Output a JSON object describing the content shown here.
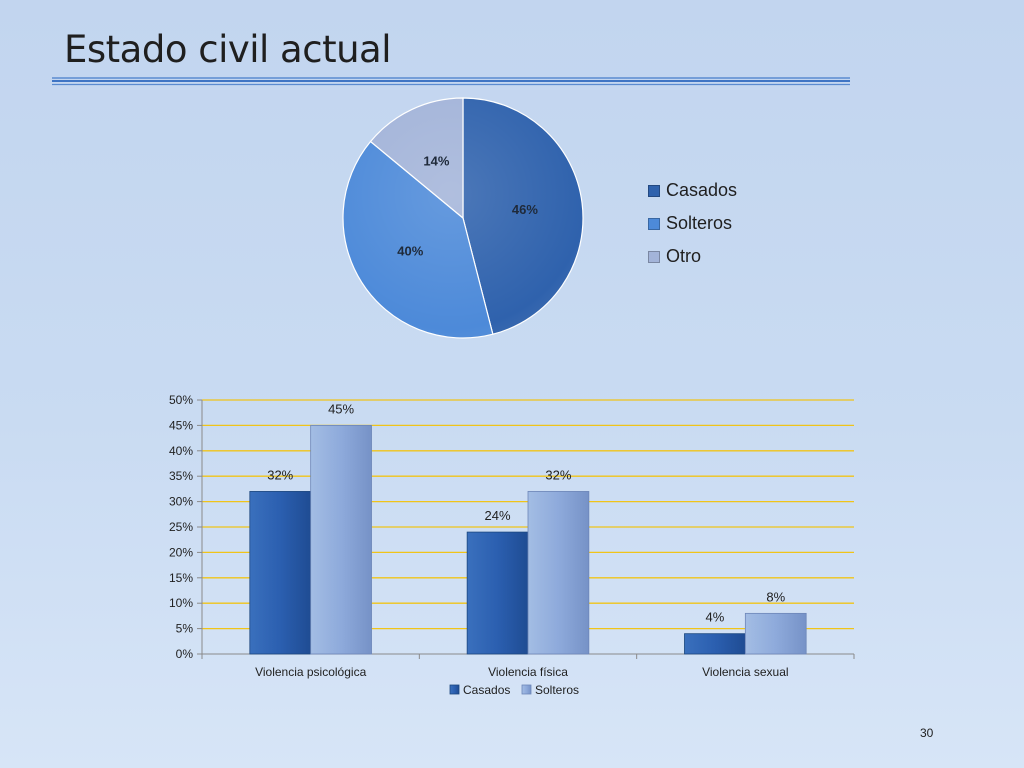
{
  "slide": {
    "title": "Estado civil actual",
    "page_number": "30"
  },
  "colors": {
    "casados": "#2f62ad",
    "solteros": "#4d8ad9",
    "otro": "#a3b4d9",
    "bar_casados": "#2b5fb0",
    "bar_solteros": "#8eaadb",
    "gridline": "#f0c419"
  },
  "chart_data": [
    {
      "type": "pie",
      "categories": [
        "Casados",
        "Solteros",
        "Otro"
      ],
      "values": [
        46,
        40,
        14
      ],
      "labels": [
        "46%",
        "40%",
        "14%"
      ],
      "legend": [
        "Casados",
        "Solteros",
        "Otro"
      ],
      "legend_position": "right"
    },
    {
      "type": "bar",
      "categories": [
        "Violencia psicológica",
        "Violencia física",
        "Violencia sexual"
      ],
      "series": [
        {
          "name": "Casados",
          "values": [
            32,
            24,
            4
          ]
        },
        {
          "name": "Solteros",
          "values": [
            45,
            32,
            8
          ]
        }
      ],
      "data_labels": [
        [
          "32%",
          "24%",
          "4%"
        ],
        [
          "45%",
          "32%",
          "8%"
        ]
      ],
      "y_ticks": [
        "0%",
        "5%",
        "10%",
        "15%",
        "20%",
        "25%",
        "30%",
        "35%",
        "40%",
        "45%",
        "50%"
      ],
      "ylim": [
        0,
        50
      ],
      "grid": true,
      "legend_position": "bottom"
    }
  ]
}
